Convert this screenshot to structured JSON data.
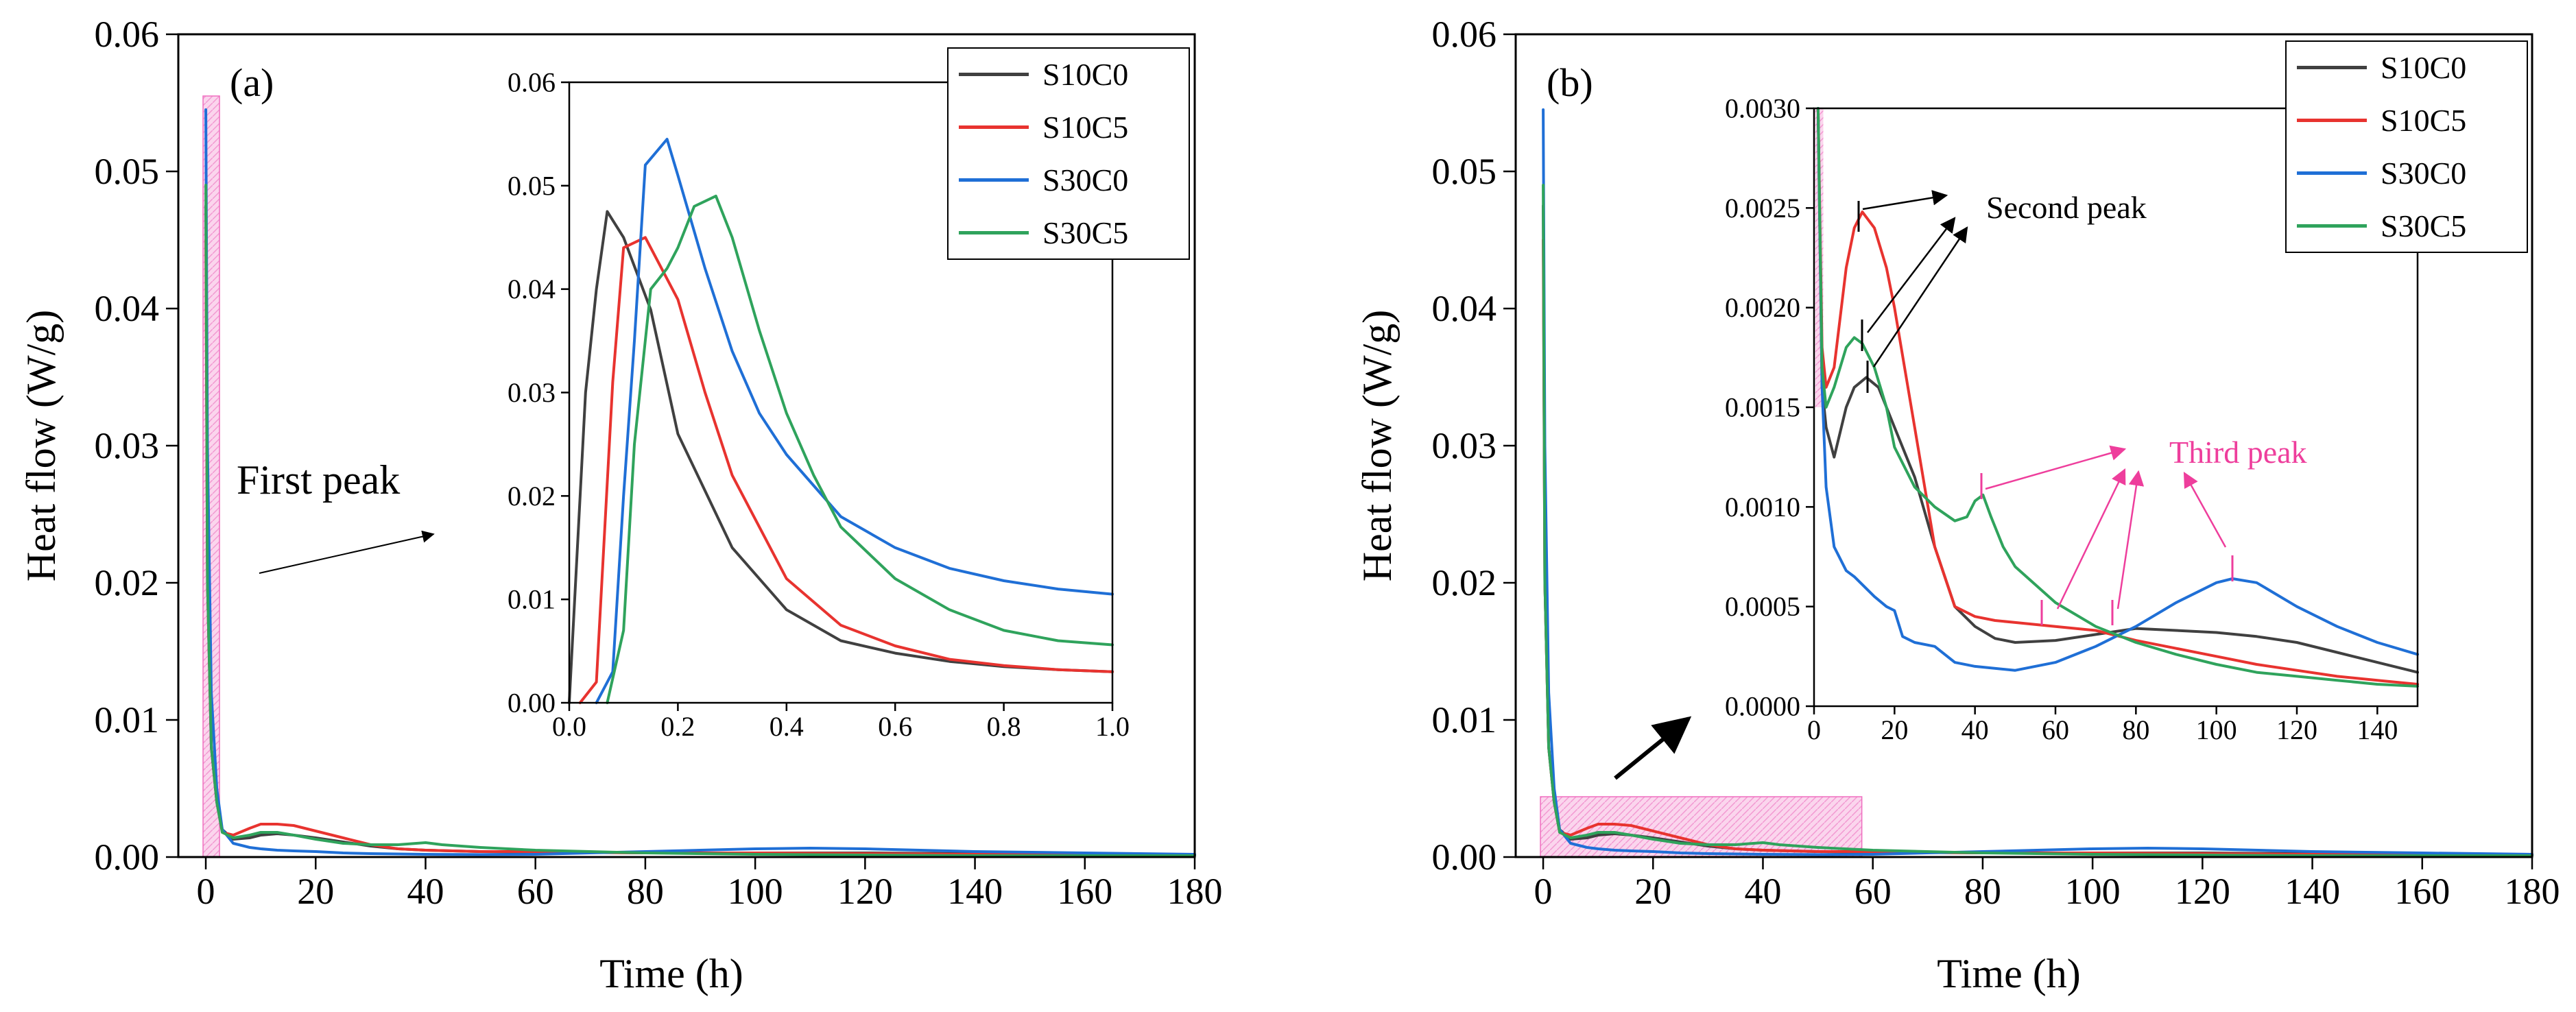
{
  "chart_data": [
    {
      "type": "line",
      "panel": "(a)",
      "xlabel": "Time (h)",
      "ylabel": "Heat flow (W/g)",
      "xlim": [
        -5,
        180
      ],
      "ylim": [
        0,
        0.06
      ],
      "xticks": [
        "0",
        "20",
        "40",
        "60",
        "80",
        "100",
        "120",
        "140",
        "160",
        "180"
      ],
      "yticks": [
        "0.00",
        "0.01",
        "0.02",
        "0.03",
        "0.04",
        "0.05",
        "0.06"
      ],
      "annotation": "First peak",
      "series": [
        {
          "name": "S10C0",
          "color": "#404040",
          "x": [
            0,
            0.3,
            1,
            2,
            3,
            5,
            8,
            10,
            13,
            16,
            20,
            25,
            30,
            35,
            40,
            50,
            60,
            80,
            100,
            120,
            140,
            160,
            180
          ],
          "y": [
            0.0475,
            0.02,
            0.008,
            0.004,
            0.002,
            0.0013,
            0.0014,
            0.0016,
            0.0017,
            0.0016,
            0.0014,
            0.0011,
            0.0008,
            0.0006,
            0.0005,
            0.0004,
            0.00035,
            0.0003,
            0.0003,
            0.0003,
            0.00025,
            0.0002,
            0.00018
          ]
        },
        {
          "name": "S10C5",
          "color": "#e8332f",
          "x": [
            0,
            0.3,
            1,
            2,
            3,
            5,
            8,
            10,
            13,
            16,
            20,
            25,
            30,
            35,
            40,
            50,
            60,
            80,
            100,
            120,
            140,
            160,
            180
          ],
          "y": [
            0.045,
            0.02,
            0.008,
            0.004,
            0.0018,
            0.0016,
            0.0021,
            0.0024,
            0.0024,
            0.0023,
            0.0019,
            0.0014,
            0.0009,
            0.0006,
            0.0005,
            0.0004,
            0.0004,
            0.0003,
            0.0003,
            0.00025,
            0.0002,
            0.00015,
            0.0001
          ]
        },
        {
          "name": "S30C0",
          "color": "#1f6fd6",
          "x": [
            0,
            0.3,
            1,
            2,
            3,
            5,
            8,
            10,
            13,
            16,
            20,
            25,
            30,
            40,
            50,
            60,
            80,
            100,
            110,
            120,
            140,
            160,
            180
          ],
          "y": [
            0.0545,
            0.03,
            0.012,
            0.005,
            0.002,
            0.001,
            0.0007,
            0.0006,
            0.0005,
            0.00045,
            0.0004,
            0.0003,
            0.00025,
            0.0002,
            0.00018,
            0.0002,
            0.0004,
            0.0006,
            0.00065,
            0.0006,
            0.0004,
            0.0003,
            0.0002
          ]
        },
        {
          "name": "S30C5",
          "color": "#2fa35c",
          "x": [
            0,
            0.3,
            1,
            2,
            3,
            5,
            8,
            10,
            13,
            16,
            20,
            25,
            30,
            35,
            40,
            43,
            50,
            60,
            80,
            100,
            120,
            140,
            160,
            180
          ],
          "y": [
            0.049,
            0.02,
            0.008,
            0.004,
            0.0018,
            0.0014,
            0.0016,
            0.0018,
            0.0018,
            0.0016,
            0.0013,
            0.001,
            0.0009,
            0.0009,
            0.00105,
            0.0009,
            0.0007,
            0.0005,
            0.0003,
            0.0002,
            0.00015,
            0.0001,
            0.0001,
            0.0001
          ]
        }
      ],
      "inset": {
        "xlim": [
          0,
          1.0
        ],
        "ylim": [
          0,
          0.06
        ],
        "xticks": [
          "0.0",
          "0.2",
          "0.4",
          "0.6",
          "0.8",
          "1.0"
        ],
        "yticks": [
          "0.00",
          "0.01",
          "0.02",
          "0.03",
          "0.04",
          "0.05",
          "0.06"
        ],
        "series": [
          {
            "name": "S10C0",
            "color": "#404040",
            "x": [
              0.0,
              0.03,
              0.05,
              0.07,
              0.1,
              0.15,
              0.2,
              0.3,
              0.4,
              0.5,
              0.6,
              0.7,
              0.8,
              0.9,
              1.0
            ],
            "y": [
              0.0,
              0.03,
              0.04,
              0.0475,
              0.045,
              0.038,
              0.026,
              0.015,
              0.009,
              0.006,
              0.0048,
              0.004,
              0.0035,
              0.0032,
              0.003
            ]
          },
          {
            "name": "S10C5",
            "color": "#e8332f",
            "x": [
              0.02,
              0.05,
              0.08,
              0.1,
              0.14,
              0.2,
              0.25,
              0.3,
              0.4,
              0.5,
              0.6,
              0.7,
              0.8,
              0.9,
              1.0
            ],
            "y": [
              0.0,
              0.002,
              0.031,
              0.044,
              0.045,
              0.039,
              0.03,
              0.022,
              0.012,
              0.0075,
              0.0055,
              0.0042,
              0.0036,
              0.0032,
              0.003
            ]
          },
          {
            "name": "S30C0",
            "color": "#1f6fd6",
            "x": [
              0.05,
              0.08,
              0.1,
              0.12,
              0.14,
              0.18,
              0.2,
              0.25,
              0.3,
              0.35,
              0.4,
              0.5,
              0.6,
              0.7,
              0.8,
              0.9,
              1.0
            ],
            "y": [
              0.0,
              0.003,
              0.02,
              0.035,
              0.052,
              0.0545,
              0.051,
              0.042,
              0.034,
              0.028,
              0.024,
              0.018,
              0.015,
              0.013,
              0.0118,
              0.011,
              0.0105
            ]
          },
          {
            "name": "S30C5",
            "color": "#2fa35c",
            "x": [
              0.07,
              0.1,
              0.12,
              0.15,
              0.18,
              0.2,
              0.23,
              0.27,
              0.3,
              0.35,
              0.4,
              0.45,
              0.5,
              0.6,
              0.7,
              0.8,
              0.9,
              1.0
            ],
            "y": [
              0.0,
              0.007,
              0.025,
              0.04,
              0.042,
              0.044,
              0.048,
              0.049,
              0.045,
              0.036,
              0.028,
              0.022,
              0.017,
              0.012,
              0.009,
              0.007,
              0.006,
              0.0056
            ]
          }
        ]
      }
    },
    {
      "type": "line",
      "panel": "(b)",
      "xlabel": "Time (h)",
      "ylabel": "Heat flow (W/g)",
      "xlim": [
        -5,
        180
      ],
      "ylim": [
        0,
        0.06
      ],
      "xticks": [
        "0",
        "20",
        "40",
        "60",
        "80",
        "100",
        "120",
        "140",
        "160",
        "180"
      ],
      "yticks": [
        "0.00",
        "0.01",
        "0.02",
        "0.03",
        "0.04",
        "0.05",
        "0.06"
      ],
      "series": [
        {
          "name": "S10C0",
          "color": "#404040",
          "x": [
            0,
            0.3,
            1,
            2,
            3,
            5,
            8,
            10,
            13,
            16,
            20,
            25,
            30,
            35,
            40,
            50,
            60,
            80,
            100,
            120,
            140,
            160,
            180
          ],
          "y": [
            0.0475,
            0.02,
            0.008,
            0.004,
            0.002,
            0.0013,
            0.0014,
            0.0016,
            0.0017,
            0.0016,
            0.0014,
            0.0011,
            0.0008,
            0.0006,
            0.0005,
            0.0004,
            0.00035,
            0.0003,
            0.0003,
            0.0003,
            0.00025,
            0.0002,
            0.00018
          ]
        },
        {
          "name": "S10C5",
          "color": "#e8332f",
          "x": [
            0,
            0.3,
            1,
            2,
            3,
            5,
            8,
            10,
            13,
            16,
            20,
            25,
            30,
            35,
            40,
            50,
            60,
            80,
            100,
            120,
            140,
            160,
            180
          ],
          "y": [
            0.045,
            0.02,
            0.008,
            0.004,
            0.0018,
            0.0016,
            0.0021,
            0.0024,
            0.0024,
            0.0023,
            0.0019,
            0.0014,
            0.0009,
            0.0006,
            0.0005,
            0.0004,
            0.0004,
            0.0003,
            0.0003,
            0.00025,
            0.0002,
            0.00015,
            0.0001
          ]
        },
        {
          "name": "S30C0",
          "color": "#1f6fd6",
          "x": [
            0,
            0.3,
            1,
            2,
            3,
            5,
            8,
            10,
            13,
            16,
            20,
            25,
            30,
            40,
            50,
            60,
            80,
            100,
            110,
            120,
            140,
            160,
            180
          ],
          "y": [
            0.0545,
            0.03,
            0.012,
            0.005,
            0.002,
            0.001,
            0.0007,
            0.0006,
            0.0005,
            0.00045,
            0.0004,
            0.0003,
            0.00025,
            0.0002,
            0.00018,
            0.0002,
            0.0004,
            0.0006,
            0.00065,
            0.0006,
            0.0004,
            0.0003,
            0.0002
          ]
        },
        {
          "name": "S30C5",
          "color": "#2fa35c",
          "x": [
            0,
            0.3,
            1,
            2,
            3,
            5,
            8,
            10,
            13,
            16,
            20,
            25,
            30,
            35,
            40,
            43,
            50,
            60,
            80,
            100,
            120,
            140,
            160,
            180
          ],
          "y": [
            0.049,
            0.02,
            0.008,
            0.004,
            0.0018,
            0.0014,
            0.0016,
            0.0018,
            0.0018,
            0.0016,
            0.0013,
            0.001,
            0.0009,
            0.0009,
            0.00105,
            0.0009,
            0.0007,
            0.0005,
            0.0003,
            0.0002,
            0.00015,
            0.0001,
            0.0001,
            0.0001
          ]
        }
      ],
      "inset": {
        "xlim": [
          0,
          150
        ],
        "ylim": [
          0,
          0.003
        ],
        "xticks": [
          "0",
          "20",
          "40",
          "60",
          "80",
          "100",
          "120",
          "140"
        ],
        "yticks": [
          "0.0000",
          "0.0005",
          "0.0010",
          "0.0015",
          "0.0020",
          "0.0025",
          "0.0030"
        ],
        "annotations": [
          "Second peak",
          "Third peak"
        ],
        "series": [
          {
            "name": "S10C0",
            "color": "#404040",
            "x": [
              1,
              2,
              3,
              5,
              8,
              10,
              13,
              16,
              20,
              25,
              30,
              35,
              40,
              45,
              50,
              60,
              70,
              80,
              90,
              100,
              110,
              120,
              130,
              140,
              150
            ],
            "y": [
              0.003,
              0.0016,
              0.0014,
              0.00125,
              0.0015,
              0.0016,
              0.00165,
              0.0016,
              0.0014,
              0.00115,
              0.0008,
              0.0005,
              0.0004,
              0.00034,
              0.00032,
              0.00033,
              0.00036,
              0.00039,
              0.00038,
              0.00037,
              0.00035,
              0.00032,
              0.00027,
              0.00022,
              0.00017
            ]
          },
          {
            "name": "S10C5",
            "color": "#e8332f",
            "x": [
              1,
              2,
              3,
              5,
              8,
              10,
              12,
              15,
              18,
              20,
              25,
              30,
              35,
              40,
              45,
              50,
              60,
              70,
              80,
              90,
              100,
              110,
              120,
              130,
              140,
              150
            ],
            "y": [
              0.003,
              0.0018,
              0.0016,
              0.0017,
              0.0022,
              0.0024,
              0.00248,
              0.0024,
              0.0022,
              0.002,
              0.0014,
              0.0008,
              0.0005,
              0.00045,
              0.00043,
              0.00042,
              0.0004,
              0.00038,
              0.00033,
              0.00029,
              0.00025,
              0.00021,
              0.00018,
              0.00015,
              0.00013,
              0.00011
            ]
          },
          {
            "name": "S30C0",
            "color": "#1f6fd6",
            "x": [
              1,
              2,
              3,
              5,
              8,
              10,
              15,
              18,
              20,
              22,
              25,
              30,
              35,
              40,
              50,
              60,
              70,
              80,
              90,
              100,
              104,
              110,
              120,
              130,
              140,
              150
            ],
            "y": [
              0.003,
              0.0016,
              0.0011,
              0.0008,
              0.00068,
              0.00065,
              0.00055,
              0.0005,
              0.00048,
              0.00035,
              0.00032,
              0.0003,
              0.00022,
              0.0002,
              0.00018,
              0.00022,
              0.0003,
              0.0004,
              0.00052,
              0.00062,
              0.00064,
              0.00062,
              0.0005,
              0.0004,
              0.00032,
              0.00026
            ]
          },
          {
            "name": "S30C5",
            "color": "#2fa35c",
            "x": [
              1,
              2,
              3,
              5,
              8,
              10,
              12,
              15,
              18,
              20,
              25,
              30,
              35,
              38,
              40,
              42,
              44,
              47,
              50,
              60,
              70,
              80,
              90,
              100,
              110,
              120,
              130,
              140,
              150
            ],
            "y": [
              0.003,
              0.0017,
              0.0015,
              0.0016,
              0.0018,
              0.00185,
              0.00182,
              0.0017,
              0.0015,
              0.0013,
              0.0011,
              0.001,
              0.00093,
              0.00095,
              0.00103,
              0.00106,
              0.00095,
              0.0008,
              0.0007,
              0.00052,
              0.0004,
              0.00032,
              0.00026,
              0.00021,
              0.00017,
              0.00015,
              0.00013,
              0.00011,
              0.0001
            ]
          }
        ]
      }
    }
  ]
}
